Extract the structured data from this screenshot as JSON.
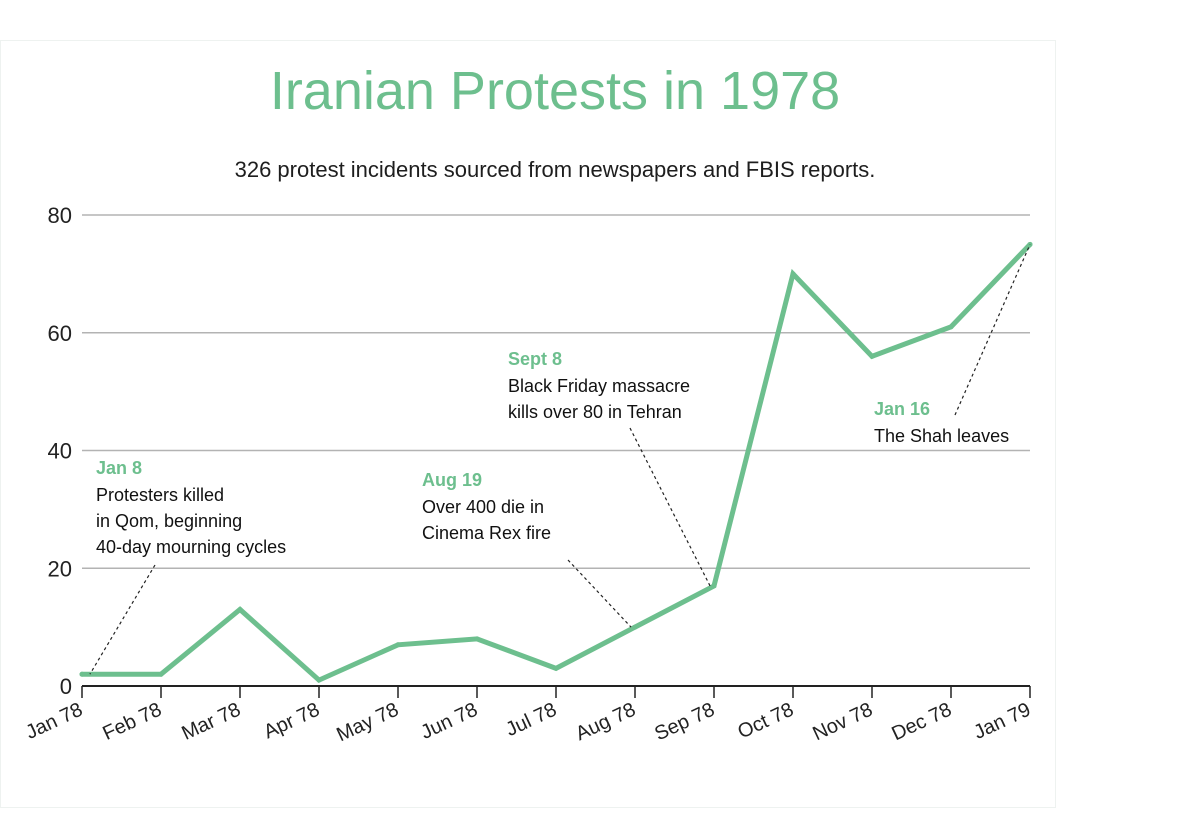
{
  "chart_data": {
    "type": "line",
    "title": "Iranian Protests in 1978",
    "subtitle": "326 protest incidents sourced from newspapers and FBIS reports.",
    "xlabel": "",
    "ylabel": "",
    "categories": [
      "Jan 78",
      "Feb 78",
      "Mar 78",
      "Apr 78",
      "May 78",
      "Jun 78",
      "Jul 78",
      "Aug 78",
      "Sep 78",
      "Oct 78",
      "Nov 78",
      "Dec 78",
      "Jan 79"
    ],
    "series": [
      {
        "values": [
          2,
          2,
          13,
          1,
          7,
          8,
          3,
          10,
          17,
          70,
          56,
          61,
          75
        ]
      }
    ],
    "ylim": [
      0,
      80
    ],
    "yticks": [
      0,
      20,
      40,
      60,
      80
    ],
    "grid": true,
    "line_color": "#6dbf8e",
    "annotations": [
      {
        "date": "Jan 8",
        "lines": [
          "Protesters killed",
          "in Qom, beginning",
          "40-day mourning cycles"
        ],
        "x": 0.1,
        "y": 2
      },
      {
        "date": "Aug 19",
        "lines": [
          "Over 400 die in",
          "Cinema Rex fire"
        ],
        "x": 6.95,
        "y": 10
      },
      {
        "date": "Sept 8",
        "lines": [
          "Black Friday massacre",
          "kills over 80 in Tehran"
        ],
        "x": 7.95,
        "y": 17
      },
      {
        "date": "Jan 16",
        "lines": [
          "The Shah leaves"
        ],
        "x": 12,
        "y": 75
      }
    ]
  }
}
